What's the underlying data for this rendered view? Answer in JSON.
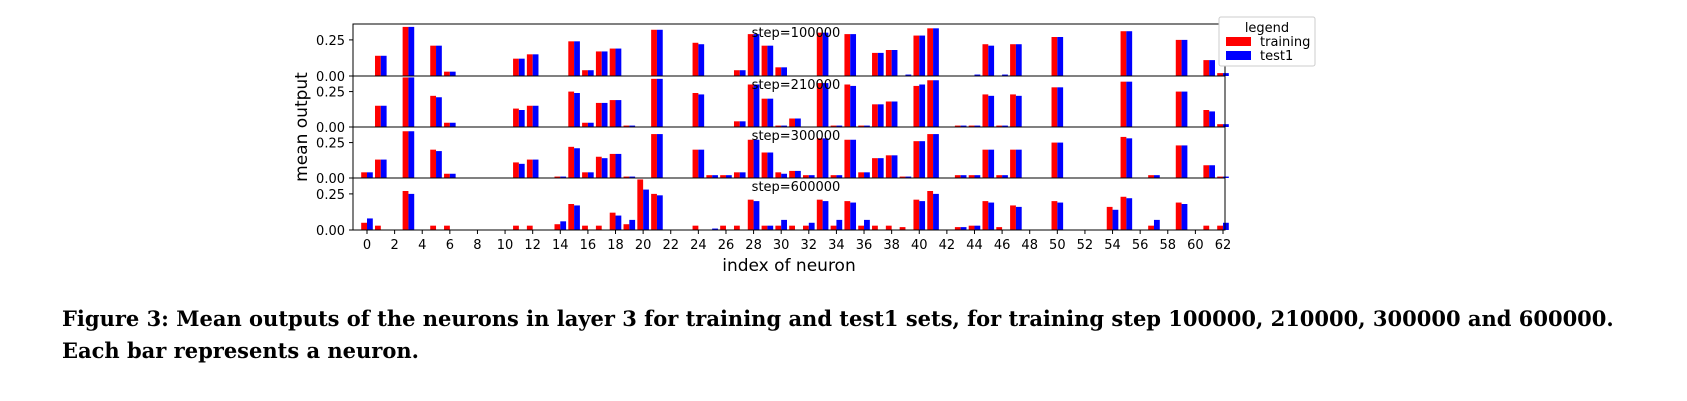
{
  "chart_data": {
    "type": "bar",
    "xlabel": "index of neuron",
    "ylabel": "mean output",
    "x_ticks": [
      "0",
      "2",
      "4",
      "6",
      "8",
      "10",
      "12",
      "14",
      "16",
      "18",
      "20",
      "22",
      "24",
      "26",
      "28",
      "30",
      "32",
      "34",
      "36",
      "38",
      "40",
      "42",
      "44",
      "46",
      "48",
      "50",
      "52",
      "54",
      "56",
      "58",
      "60",
      "62"
    ],
    "legend": {
      "title": "legend",
      "entries": [
        "training",
        "test1"
      ],
      "placement": "top-right, outside plot"
    },
    "colors": {
      "training": "#ff0000",
      "test1": "#0000ff"
    },
    "panels": [
      {
        "title": "step=100000",
        "ylim": [
          0,
          0.36
        ],
        "yticks": [
          "0.00",
          "0.25"
        ],
        "series": [
          {
            "name": "training",
            "values": [
              0,
              0.14,
              0,
              0.34,
              0,
              0.21,
              0.03,
              0,
              0,
              0,
              0,
              0.12,
              0.15,
              0,
              0,
              0.24,
              0.04,
              0.17,
              0.19,
              0,
              0,
              0.32,
              0,
              0,
              0.23,
              0,
              0,
              0.04,
              0.29,
              0.21,
              0.06,
              0,
              0,
              0.3,
              0,
              0.29,
              0,
              0.16,
              0.18,
              0,
              0.28,
              0.33,
              0,
              0,
              0,
              0.22,
              0,
              0.22,
              0,
              0,
              0.27,
              0,
              0,
              0,
              0,
              0.31,
              0,
              0,
              0,
              0.25,
              0,
              0.11,
              0.02
            ]
          },
          {
            "name": "test1",
            "values": [
              0,
              0.14,
              0,
              0.34,
              0,
              0.21,
              0.03,
              0,
              0,
              0,
              0,
              0.12,
              0.15,
              0,
              0,
              0.24,
              0.04,
              0.17,
              0.19,
              0,
              0,
              0.32,
              0,
              0,
              0.22,
              0,
              0,
              0.04,
              0.29,
              0.21,
              0.06,
              0,
              0,
              0.3,
              0,
              0.29,
              0,
              0.16,
              0.18,
              0.01,
              0.28,
              0.33,
              0,
              0,
              0.01,
              0.21,
              0.01,
              0.22,
              0,
              0,
              0.27,
              0,
              0,
              0,
              0,
              0.31,
              0,
              0,
              0,
              0.25,
              0,
              0.11,
              0.02
            ]
          }
        ]
      },
      {
        "title": "step=210000",
        "ylim": [
          0,
          0.36
        ],
        "yticks": [
          "0.00",
          "0.25"
        ],
        "series": [
          {
            "name": "training",
            "values": [
              0,
              0.15,
              0,
              0.35,
              0,
              0.22,
              0.03,
              0,
              0,
              0,
              0,
              0.13,
              0.15,
              0,
              0,
              0.25,
              0.03,
              0.17,
              0.19,
              0.01,
              0,
              0.34,
              0,
              0,
              0.24,
              0,
              0,
              0.04,
              0.3,
              0.2,
              0.01,
              0.06,
              0,
              0.31,
              0.01,
              0.3,
              0.01,
              0.16,
              0.18,
              0,
              0.29,
              0.33,
              0,
              0.01,
              0.01,
              0.23,
              0.01,
              0.23,
              0,
              0,
              0.28,
              0,
              0,
              0,
              0,
              0.32,
              0,
              0,
              0,
              0.25,
              0,
              0.12,
              0.02
            ]
          },
          {
            "name": "test1",
            "values": [
              0,
              0.15,
              0,
              0.35,
              0,
              0.21,
              0.03,
              0,
              0,
              0,
              0,
              0.12,
              0.15,
              0,
              0,
              0.24,
              0.03,
              0.17,
              0.19,
              0.01,
              0,
              0.34,
              0,
              0,
              0.23,
              0,
              0,
              0.04,
              0.3,
              0.2,
              0.01,
              0.06,
              0,
              0.31,
              0.01,
              0.29,
              0.01,
              0.16,
              0.18,
              0,
              0.3,
              0.33,
              0,
              0.01,
              0.01,
              0.22,
              0.01,
              0.22,
              0,
              0,
              0.28,
              0,
              0,
              0,
              0,
              0.32,
              0,
              0,
              0,
              0.25,
              0,
              0.11,
              0.02
            ]
          }
        ]
      },
      {
        "title": "step=300000",
        "ylim": [
          0,
          0.36
        ],
        "yticks": [
          "0.00",
          "0.25"
        ],
        "series": [
          {
            "name": "training",
            "values": [
              0.04,
              0.13,
              0,
              0.33,
              0,
              0.2,
              0.03,
              0,
              0,
              0,
              0,
              0.11,
              0.13,
              0,
              0.01,
              0.22,
              0.04,
              0.15,
              0.17,
              0.01,
              0,
              0.31,
              0,
              0,
              0.2,
              0.02,
              0.02,
              0.04,
              0.27,
              0.18,
              0.04,
              0.05,
              0.02,
              0.28,
              0.02,
              0.27,
              0.04,
              0.14,
              0.16,
              0.01,
              0.26,
              0.31,
              0,
              0.02,
              0.02,
              0.2,
              0.02,
              0.2,
              0,
              0,
              0.25,
              0,
              0,
              0,
              0,
              0.29,
              0,
              0.02,
              0,
              0.23,
              0,
              0.09,
              0.01
            ]
          },
          {
            "name": "test1",
            "values": [
              0.04,
              0.13,
              0,
              0.33,
              0,
              0.19,
              0.03,
              0,
              0,
              0,
              0,
              0.1,
              0.13,
              0,
              0.01,
              0.21,
              0.04,
              0.14,
              0.17,
              0.01,
              0,
              0.31,
              0,
              0,
              0.2,
              0.02,
              0.02,
              0.04,
              0.27,
              0.18,
              0.03,
              0.05,
              0.02,
              0.28,
              0.02,
              0.27,
              0.04,
              0.14,
              0.16,
              0.01,
              0.26,
              0.31,
              0,
              0.02,
              0.02,
              0.2,
              0.02,
              0.2,
              0,
              0,
              0.25,
              0,
              0,
              0,
              0,
              0.28,
              0,
              0.02,
              0,
              0.23,
              0,
              0.09,
              0.01
            ]
          }
        ]
      },
      {
        "title": "step=600000",
        "ylim": [
          0,
          0.36
        ],
        "yticks": [
          "0.00",
          "0.25"
        ],
        "series": [
          {
            "name": "training",
            "values": [
              0.05,
              0.03,
              0,
              0.27,
              0,
              0.03,
              0.03,
              0,
              0,
              0,
              0,
              0.03,
              0.03,
              0,
              0.04,
              0.18,
              0.03,
              0.03,
              0.12,
              0.04,
              0.35,
              0.25,
              0,
              0,
              0.03,
              0,
              0.03,
              0.03,
              0.21,
              0.03,
              0.03,
              0.03,
              0.03,
              0.21,
              0.03,
              0.2,
              0.03,
              0.03,
              0.03,
              0.02,
              0.21,
              0.27,
              0,
              0.02,
              0.03,
              0.2,
              0.02,
              0.17,
              0,
              0,
              0.2,
              0,
              0,
              0,
              0.16,
              0.23,
              0,
              0.03,
              0,
              0.19,
              0,
              0.03,
              0.03
            ]
          },
          {
            "name": "test1",
            "values": [
              0.08,
              0,
              0,
              0.25,
              0,
              0,
              0,
              0,
              0,
              0,
              0,
              0,
              0,
              0,
              0.06,
              0.17,
              0,
              0,
              0.1,
              0.07,
              0.28,
              0.24,
              0,
              0,
              0,
              0.01,
              0,
              0,
              0.2,
              0.03,
              0.07,
              0,
              0.05,
              0.2,
              0.07,
              0.19,
              0.07,
              0,
              0,
              0,
              0.2,
              0.25,
              0,
              0.02,
              0.03,
              0.19,
              0,
              0.16,
              0,
              0,
              0.19,
              0,
              0,
              0,
              0.14,
              0.22,
              0,
              0.07,
              0,
              0.18,
              0,
              0,
              0.05
            ]
          }
        ],
        "extra_series_note": ""
      }
    ]
  },
  "caption": "Figure 3: Mean outputs of the neurons in layer 3 for training and test1 sets, for training step 100000, 210000, 300000 and 600000. Each bar represents a neuron."
}
